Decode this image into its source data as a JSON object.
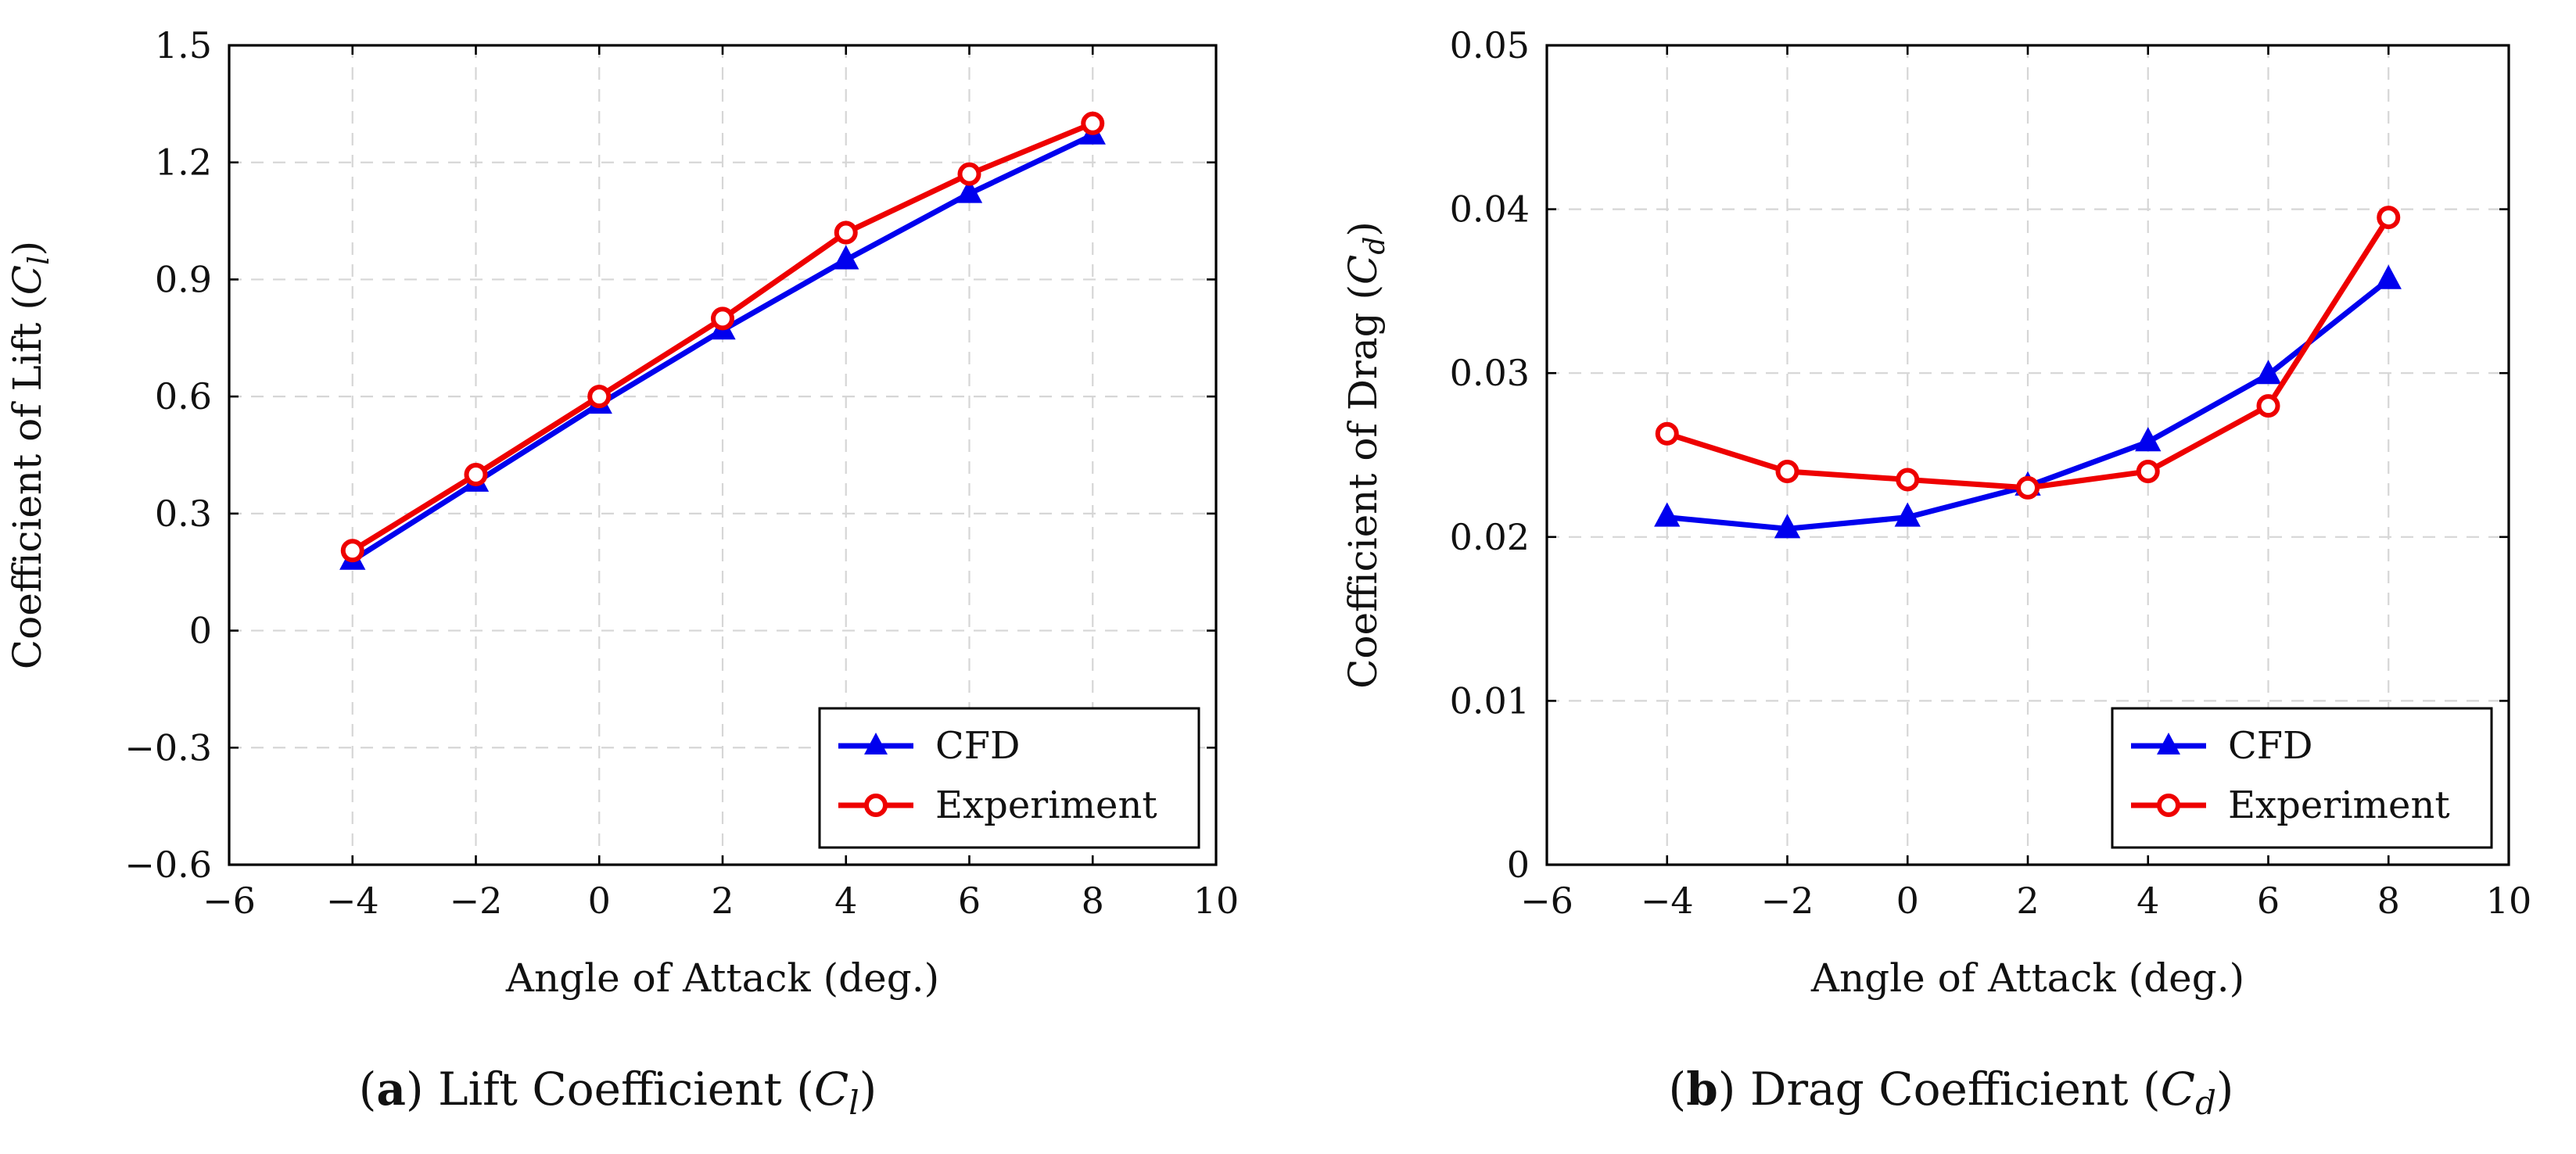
{
  "chart_data": [
    {
      "type": "line",
      "panel": "a",
      "caption_letter": "a",
      "caption": "Lift Coefficient",
      "caption_symbol": "C",
      "caption_subscript": "l",
      "xlabel": "Angle of Attack (deg.)",
      "ylabel": "Coefficient of Lift",
      "ylabel_symbol": "C",
      "ylabel_subscript": "l",
      "xlim": [
        -6,
        10
      ],
      "ylim": [
        -0.6,
        1.5
      ],
      "x_ticks": [
        -6,
        -4,
        -2,
        0,
        2,
        4,
        6,
        8,
        10
      ],
      "x_tick_labels": [
        "−6",
        "−4",
        "−2",
        "0",
        "2",
        "4",
        "6",
        "8",
        "10"
      ],
      "y_ticks": [
        -0.6,
        -0.3,
        0,
        0.3,
        0.6,
        0.9,
        1.2,
        1.5
      ],
      "y_tick_labels": [
        "−0.6",
        "−0.3",
        "0",
        "0.3",
        "0.6",
        "0.9",
        "1.2",
        "1.5"
      ],
      "grid": true,
      "legend_position": "bottom-right",
      "x": [
        -4,
        -2,
        0,
        2,
        4,
        6,
        8
      ],
      "series": [
        {
          "name": "CFD",
          "color": "#0000ee",
          "marker": "triangle",
          "values": [
            0.18,
            0.38,
            0.58,
            0.77,
            0.95,
            1.12,
            1.27
          ]
        },
        {
          "name": "Experiment",
          "color": "#ee0000",
          "marker": "circle",
          "values": [
            0.205,
            0.4,
            0.6,
            0.8,
            1.02,
            1.17,
            1.3
          ]
        }
      ]
    },
    {
      "type": "line",
      "panel": "b",
      "caption_letter": "b",
      "caption": "Drag Coefficient",
      "caption_symbol": "C",
      "caption_subscript": "d",
      "xlabel": "Angle of Attack (deg.)",
      "ylabel": "Coefficient of Drag",
      "ylabel_symbol": "C",
      "ylabel_subscript": "d",
      "xlim": [
        -6,
        10
      ],
      "ylim": [
        0,
        0.05
      ],
      "x_ticks": [
        -6,
        -4,
        -2,
        0,
        2,
        4,
        6,
        8,
        10
      ],
      "x_tick_labels": [
        "−6",
        "−4",
        "−2",
        "0",
        "2",
        "4",
        "6",
        "8",
        "10"
      ],
      "y_ticks": [
        0,
        0.01,
        0.02,
        0.03,
        0.04,
        0.05
      ],
      "y_tick_labels": [
        "0",
        "0.01",
        "0.02",
        "0.03",
        "0.04",
        "0.05"
      ],
      "grid": true,
      "legend_position": "bottom-right",
      "x": [
        -4,
        -2,
        0,
        2,
        4,
        6,
        8
      ],
      "series": [
        {
          "name": "CFD",
          "color": "#0000ee",
          "marker": "triangle",
          "values": [
            0.0212,
            0.0205,
            0.0212,
            0.0231,
            0.0258,
            0.0299,
            0.0357
          ]
        },
        {
          "name": "Experiment",
          "color": "#ee0000",
          "marker": "circle",
          "values": [
            0.0263,
            0.024,
            0.0235,
            0.023,
            0.024,
            0.028,
            0.0395
          ]
        }
      ]
    }
  ]
}
